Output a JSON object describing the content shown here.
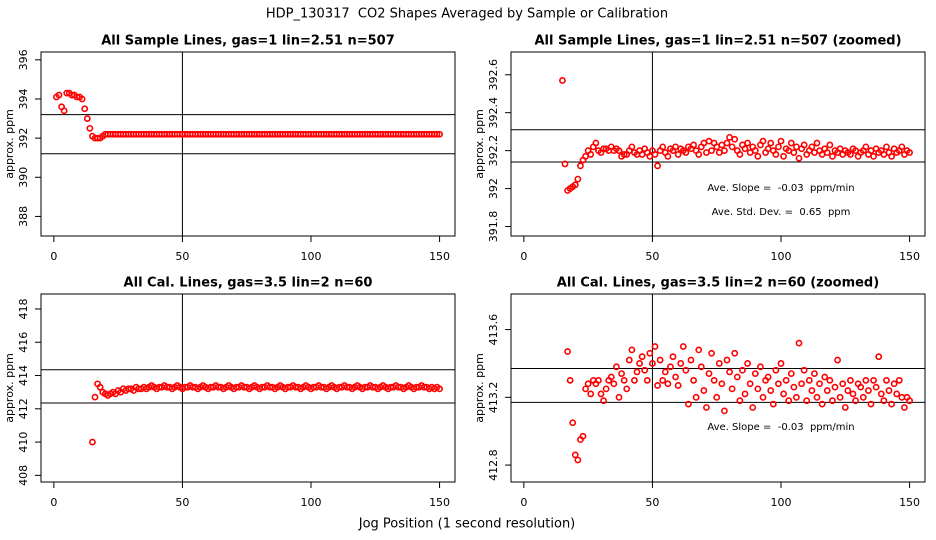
{
  "title": "HDP_130317  CO2 Shapes Averaged by Sample or Calibration",
  "xlabel": "Jog Position (1 second resolution)",
  "chart_data": [
    {
      "type": "scatter",
      "title": "All Sample Lines, gas=1 lin=2.51 n=507",
      "ylabel": "approx. ppm",
      "color": "#ff0000",
      "xlim": [
        -5,
        156
      ],
      "xticks": [
        0,
        50,
        100,
        150
      ],
      "ylim": [
        387,
        396.4
      ],
      "yticks": [
        388,
        390,
        392,
        394,
        396
      ],
      "hlines": [
        393.2,
        391.2
      ],
      "vlines": [
        50
      ],
      "annotations": [],
      "x": [
        1,
        2,
        3,
        4,
        5,
        6,
        7,
        8,
        9,
        10,
        11,
        12,
        13,
        14,
        15,
        16,
        17,
        18,
        19,
        20,
        21,
        22,
        23,
        24,
        25,
        26,
        27,
        28,
        29,
        30,
        31,
        32,
        33,
        34,
        35,
        36,
        37,
        38,
        39,
        40,
        41,
        42,
        43,
        44,
        45,
        46,
        47,
        48,
        49,
        50,
        51,
        52,
        53,
        54,
        55,
        56,
        57,
        58,
        59,
        60,
        61,
        62,
        63,
        64,
        65,
        66,
        67,
        68,
        69,
        70,
        71,
        72,
        73,
        74,
        75,
        76,
        77,
        78,
        79,
        80,
        81,
        82,
        83,
        84,
        85,
        86,
        87,
        88,
        89,
        90,
        91,
        92,
        93,
        94,
        95,
        96,
        97,
        98,
        99,
        100,
        101,
        102,
        103,
        104,
        105,
        106,
        107,
        108,
        109,
        110,
        111,
        112,
        113,
        114,
        115,
        116,
        117,
        118,
        119,
        120,
        121,
        122,
        123,
        124,
        125,
        126,
        127,
        128,
        129,
        130,
        131,
        132,
        133,
        134,
        135,
        136,
        137,
        138,
        139,
        140,
        141,
        142,
        143,
        144,
        145,
        146,
        147,
        148,
        149,
        150
      ],
      "values": [
        394.1,
        394.2,
        393.6,
        393.4,
        394.3,
        394.3,
        394.2,
        394.2,
        394.1,
        394.1,
        394.0,
        393.5,
        393.0,
        392.5,
        392.1,
        392.0,
        392.0,
        392.0,
        392.1,
        392.2,
        392.2,
        392.2,
        392.2,
        392.2,
        392.2,
        392.2,
        392.2,
        392.2,
        392.2,
        392.2,
        392.2,
        392.2,
        392.2,
        392.2,
        392.2,
        392.2,
        392.2,
        392.2,
        392.2,
        392.2,
        392.2,
        392.2,
        392.2,
        392.2,
        392.2,
        392.2,
        392.2,
        392.2,
        392.2,
        392.2,
        392.2,
        392.2,
        392.2,
        392.2,
        392.2,
        392.2,
        392.2,
        392.2,
        392.2,
        392.2,
        392.2,
        392.2,
        392.2,
        392.2,
        392.2,
        392.2,
        392.2,
        392.2,
        392.2,
        392.2,
        392.2,
        392.2,
        392.2,
        392.2,
        392.2,
        392.2,
        392.2,
        392.2,
        392.2,
        392.2,
        392.2,
        392.2,
        392.2,
        392.2,
        392.2,
        392.2,
        392.2,
        392.2,
        392.2,
        392.2,
        392.2,
        392.2,
        392.2,
        392.2,
        392.2,
        392.2,
        392.2,
        392.2,
        392.2,
        392.2,
        392.2,
        392.2,
        392.2,
        392.2,
        392.2,
        392.2,
        392.2,
        392.2,
        392.2,
        392.2,
        392.2,
        392.2,
        392.2,
        392.2,
        392.2,
        392.2,
        392.2,
        392.2,
        392.2,
        392.2,
        392.2,
        392.2,
        392.2,
        392.2,
        392.2,
        392.2,
        392.2,
        392.2,
        392.2,
        392.2,
        392.2,
        392.2,
        392.2,
        392.2,
        392.2,
        392.2,
        392.2,
        392.2,
        392.2,
        392.2,
        392.2,
        392.2,
        392.2,
        392.2,
        392.2,
        392.2,
        392.2,
        392.2,
        392.2,
        392.2
      ]
    },
    {
      "type": "scatter",
      "title": "All Sample Lines, gas=1 lin=2.51 n=507 (zoomed)",
      "ylabel": "approx. ppm",
      "color": "#ff0000",
      "xlim": [
        -5,
        156
      ],
      "xticks": [
        0,
        50,
        100,
        150
      ],
      "ylim": [
        391.75,
        392.72
      ],
      "yticks": [
        391.8,
        392.0,
        392.2,
        392.4,
        392.6
      ],
      "hlines": [
        392.31,
        392.14
      ],
      "vlines": [
        50
      ],
      "annotations": [
        "Ave. Slope =  -0.03  ppm/min",
        "Ave. Std. Dev. =  0.65  ppm"
      ],
      "x": [
        15,
        16,
        17,
        18,
        19,
        20,
        21,
        22,
        23,
        24,
        25,
        26,
        27,
        28,
        29,
        30,
        31,
        32,
        33,
        34,
        35,
        36,
        37,
        38,
        39,
        40,
        41,
        42,
        43,
        44,
        45,
        46,
        47,
        48,
        49,
        50,
        51,
        52,
        53,
        54,
        55,
        56,
        57,
        58,
        59,
        60,
        61,
        62,
        63,
        64,
        65,
        66,
        67,
        68,
        69,
        70,
        71,
        72,
        73,
        74,
        75,
        76,
        77,
        78,
        79,
        80,
        81,
        82,
        83,
        84,
        85,
        86,
        87,
        88,
        89,
        90,
        91,
        92,
        93,
        94,
        95,
        96,
        97,
        98,
        99,
        100,
        101,
        102,
        103,
        104,
        105,
        106,
        107,
        108,
        109,
        110,
        111,
        112,
        113,
        114,
        115,
        116,
        117,
        118,
        119,
        120,
        121,
        122,
        123,
        124,
        125,
        126,
        127,
        128,
        129,
        130,
        131,
        132,
        133,
        134,
        135,
        136,
        137,
        138,
        139,
        140,
        141,
        142,
        143,
        144,
        145,
        146,
        147,
        148,
        149,
        150
      ],
      "values": [
        392.57,
        392.13,
        391.99,
        392.0,
        392.01,
        392.02,
        392.05,
        392.12,
        392.15,
        392.17,
        392.2,
        392.18,
        392.22,
        392.24,
        392.2,
        392.19,
        392.21,
        392.21,
        392.2,
        392.22,
        392.2,
        392.21,
        392.2,
        392.17,
        392.18,
        392.18,
        392.2,
        392.22,
        392.19,
        392.18,
        392.2,
        392.18,
        392.21,
        392.19,
        392.17,
        392.2,
        392.18,
        392.12,
        392.2,
        392.22,
        392.19,
        392.17,
        392.21,
        392.2,
        392.22,
        392.18,
        392.21,
        392.2,
        392.19,
        392.22,
        392.21,
        392.23,
        392.2,
        392.18,
        392.22,
        392.24,
        392.19,
        392.25,
        392.2,
        392.24,
        392.22,
        392.19,
        392.23,
        392.2,
        392.24,
        392.27,
        392.22,
        392.26,
        392.2,
        392.18,
        392.23,
        392.21,
        392.24,
        392.19,
        392.22,
        392.2,
        392.17,
        392.23,
        392.25,
        392.19,
        392.21,
        392.24,
        392.2,
        392.18,
        392.22,
        392.25,
        392.17,
        392.21,
        392.2,
        392.24,
        392.19,
        392.22,
        392.16,
        392.21,
        392.23,
        392.18,
        392.2,
        392.22,
        392.19,
        392.24,
        392.2,
        392.18,
        392.21,
        392.19,
        392.23,
        392.17,
        392.2,
        392.19,
        392.21,
        392.18,
        392.2,
        392.19,
        392.18,
        392.21,
        392.2,
        392.17,
        392.19,
        392.2,
        392.22,
        392.18,
        392.2,
        392.17,
        392.21,
        392.19,
        392.2,
        392.18,
        392.22,
        392.19,
        392.17,
        392.21,
        392.19,
        392.2,
        392.22,
        392.18,
        392.2,
        392.19
      ]
    },
    {
      "type": "scatter",
      "title": "All Cal. Lines, gas=3.5 lin=2 n=60",
      "ylabel": "approx. ppm",
      "color": "#ff0000",
      "xlim": [
        -5,
        156
      ],
      "xticks": [
        0,
        50,
        100,
        150
      ],
      "ylim": [
        407.6,
        418.9
      ],
      "yticks": [
        408,
        410,
        412,
        414,
        416,
        418
      ],
      "hlines": [
        414.35,
        412.35
      ],
      "vlines": [
        50
      ],
      "annotations": [],
      "x": [
        15,
        16,
        17,
        18,
        19,
        20,
        21,
        22,
        23,
        24,
        25,
        26,
        27,
        28,
        29,
        30,
        31,
        32,
        33,
        34,
        35,
        36,
        37,
        38,
        39,
        40,
        41,
        42,
        43,
        44,
        45,
        46,
        47,
        48,
        49,
        50,
        51,
        52,
        53,
        54,
        55,
        56,
        57,
        58,
        59,
        60,
        61,
        62,
        63,
        64,
        65,
        66,
        67,
        68,
        69,
        70,
        71,
        72,
        73,
        74,
        75,
        76,
        77,
        78,
        79,
        80,
        81,
        82,
        83,
        84,
        85,
        86,
        87,
        88,
        89,
        90,
        91,
        92,
        93,
        94,
        95,
        96,
        97,
        98,
        99,
        100,
        101,
        102,
        103,
        104,
        105,
        106,
        107,
        108,
        109,
        110,
        111,
        112,
        113,
        114,
        115,
        116,
        117,
        118,
        119,
        120,
        121,
        122,
        123,
        124,
        125,
        126,
        127,
        128,
        129,
        130,
        131,
        132,
        133,
        134,
        135,
        136,
        137,
        138,
        139,
        140,
        141,
        142,
        143,
        144,
        145,
        146,
        147,
        148,
        149,
        150
      ],
      "values": [
        410.0,
        412.7,
        413.5,
        413.3,
        413.0,
        412.9,
        412.8,
        412.9,
        413.0,
        412.9,
        413.1,
        413.0,
        413.2,
        413.1,
        413.2,
        413.2,
        413.1,
        413.3,
        413.2,
        413.2,
        413.3,
        413.2,
        413.3,
        413.4,
        413.3,
        413.2,
        413.3,
        413.3,
        413.4,
        413.3,
        413.3,
        413.2,
        413.3,
        413.4,
        413.3,
        413.2,
        413.3,
        413.3,
        413.4,
        413.3,
        413.3,
        413.2,
        413.3,
        413.4,
        413.3,
        413.2,
        413.3,
        413.3,
        413.4,
        413.3,
        413.3,
        413.2,
        413.3,
        413.4,
        413.3,
        413.2,
        413.3,
        413.3,
        413.4,
        413.3,
        413.3,
        413.2,
        413.3,
        413.4,
        413.3,
        413.2,
        413.3,
        413.3,
        413.4,
        413.3,
        413.3,
        413.2,
        413.3,
        413.4,
        413.3,
        413.2,
        413.3,
        413.3,
        413.4,
        413.3,
        413.3,
        413.2,
        413.3,
        413.4,
        413.3,
        413.2,
        413.3,
        413.3,
        413.4,
        413.3,
        413.3,
        413.2,
        413.3,
        413.4,
        413.3,
        413.2,
        413.3,
        413.3,
        413.4,
        413.3,
        413.3,
        413.2,
        413.3,
        413.4,
        413.3,
        413.2,
        413.3,
        413.3,
        413.4,
        413.3,
        413.3,
        413.2,
        413.3,
        413.4,
        413.3,
        413.2,
        413.3,
        413.3,
        413.4,
        413.3,
        413.3,
        413.2,
        413.3,
        413.4,
        413.3,
        413.2,
        413.3,
        413.3,
        413.4,
        413.3,
        413.3,
        413.2,
        413.3,
        413.2,
        413.3,
        413.2
      ]
    },
    {
      "type": "scatter",
      "title": "All Cal. Lines, gas=3.5 lin=2 n=60 (zoomed)",
      "ylabel": "approx. ppm",
      "color": "#ff0000",
      "xlim": [
        -5,
        156
      ],
      "xticks": [
        0,
        50,
        100,
        150
      ],
      "ylim": [
        412.7,
        413.81
      ],
      "yticks": [
        412.8,
        413.2,
        413.6
      ],
      "hlines": [
        413.37,
        413.17
      ],
      "vlines": [
        50
      ],
      "annotations": [
        "Ave. Slope =  -0.03  ppm/min"
      ],
      "x": [
        17,
        18,
        19,
        20,
        21,
        22,
        23,
        24,
        25,
        26,
        27,
        28,
        29,
        30,
        31,
        32,
        33,
        34,
        35,
        36,
        37,
        38,
        39,
        40,
        41,
        42,
        43,
        44,
        45,
        46,
        47,
        48,
        49,
        50,
        51,
        52,
        53,
        54,
        55,
        56,
        57,
        58,
        59,
        60,
        61,
        62,
        63,
        64,
        65,
        66,
        67,
        68,
        69,
        70,
        71,
        72,
        73,
        74,
        75,
        76,
        77,
        78,
        79,
        80,
        81,
        82,
        83,
        84,
        85,
        86,
        87,
        88,
        89,
        90,
        91,
        92,
        93,
        94,
        95,
        96,
        97,
        98,
        99,
        100,
        101,
        102,
        103,
        104,
        105,
        106,
        107,
        108,
        109,
        110,
        111,
        112,
        113,
        114,
        115,
        116,
        117,
        118,
        119,
        120,
        121,
        122,
        123,
        124,
        125,
        126,
        127,
        128,
        129,
        130,
        131,
        132,
        133,
        134,
        135,
        136,
        137,
        138,
        139,
        140,
        141,
        142,
        143,
        144,
        145,
        146,
        147,
        148,
        149,
        150
      ],
      "values": [
        413.47,
        413.3,
        413.05,
        412.86,
        412.83,
        412.95,
        412.97,
        413.25,
        413.28,
        413.22,
        413.3,
        413.28,
        413.3,
        413.22,
        413.18,
        413.25,
        413.3,
        413.32,
        413.28,
        413.38,
        413.2,
        413.34,
        413.3,
        413.25,
        413.42,
        413.48,
        413.3,
        413.35,
        413.4,
        413.44,
        413.36,
        413.3,
        413.46,
        413.4,
        413.5,
        413.27,
        413.42,
        413.3,
        413.35,
        413.28,
        413.38,
        413.44,
        413.32,
        413.27,
        413.4,
        413.5,
        413.36,
        413.16,
        413.42,
        413.3,
        413.2,
        413.48,
        413.38,
        413.24,
        413.14,
        413.34,
        413.46,
        413.3,
        413.2,
        413.4,
        413.28,
        413.12,
        413.42,
        413.35,
        413.25,
        413.46,
        413.32,
        413.18,
        413.36,
        413.22,
        413.4,
        413.28,
        413.14,
        413.34,
        413.25,
        413.38,
        413.2,
        413.3,
        413.32,
        413.24,
        413.16,
        413.36,
        413.28,
        413.4,
        413.22,
        413.3,
        413.18,
        413.34,
        413.26,
        413.2,
        413.52,
        413.28,
        413.36,
        413.18,
        413.3,
        413.24,
        413.34,
        413.2,
        413.28,
        413.16,
        413.32,
        413.24,
        413.3,
        413.18,
        413.26,
        413.42,
        413.2,
        413.28,
        413.14,
        413.24,
        413.3,
        413.22,
        413.18,
        413.28,
        413.26,
        413.2,
        413.3,
        413.24,
        413.16,
        413.3,
        413.26,
        413.44,
        413.22,
        413.18,
        413.3,
        413.24,
        413.16,
        413.28,
        413.22,
        413.3,
        413.2,
        413.14,
        413.2,
        413.18
      ]
    }
  ]
}
